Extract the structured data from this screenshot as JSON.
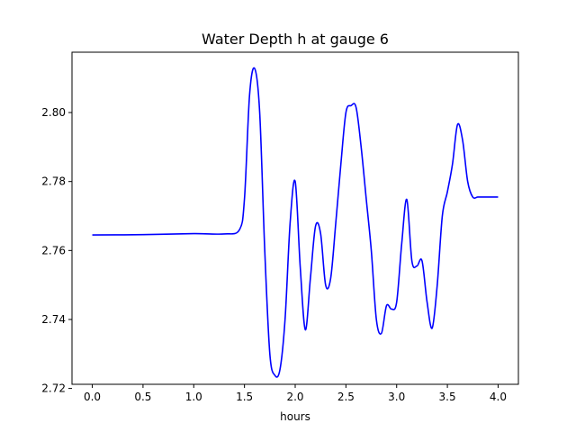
{
  "chart_data": {
    "type": "line",
    "title": "Water Depth h at gauge 6",
    "xlabel": "hours",
    "ylabel": "",
    "xlim": [
      -0.2,
      4.2
    ],
    "ylim": [
      2.7212,
      2.8175
    ],
    "xticks": [
      0.0,
      0.5,
      1.0,
      1.5,
      2.0,
      2.5,
      3.0,
      3.5,
      4.0
    ],
    "xtick_labels": [
      "0.0",
      "0.5",
      "1.0",
      "1.5",
      "2.0",
      "2.5",
      "3.0",
      "3.5",
      "4.0"
    ],
    "yticks": [
      2.72,
      2.74,
      2.76,
      2.78,
      2.8
    ],
    "ytick_labels": [
      "2.72",
      "2.74",
      "2.76",
      "2.78",
      "2.80"
    ],
    "grid": false,
    "series": [
      {
        "color": "#0000ff",
        "x": [
          0.0,
          0.5,
          1.0,
          1.3,
          1.45,
          1.5,
          1.55,
          1.6,
          1.65,
          1.7,
          1.75,
          1.8,
          1.85,
          1.9,
          1.95,
          2.0,
          2.05,
          2.1,
          2.15,
          2.2,
          2.25,
          2.3,
          2.35,
          2.4,
          2.45,
          2.5,
          2.55,
          2.6,
          2.65,
          2.7,
          2.75,
          2.8,
          2.85,
          2.9,
          2.95,
          3.0,
          3.05,
          3.1,
          3.15,
          3.2,
          3.25,
          3.3,
          3.35,
          3.4,
          3.45,
          3.5,
          3.55,
          3.6,
          3.65,
          3.7,
          3.75,
          3.8,
          3.85,
          3.9,
          3.95,
          4.0
        ],
        "y": [
          2.7645,
          2.7646,
          2.7649,
          2.7648,
          2.766,
          2.775,
          2.805,
          2.8128,
          2.8,
          2.76,
          2.73,
          2.7238,
          2.7255,
          2.74,
          2.768,
          2.78,
          2.755,
          2.737,
          2.752,
          2.767,
          2.765,
          2.75,
          2.752,
          2.768,
          2.785,
          2.8,
          2.802,
          2.8015,
          2.79,
          2.775,
          2.76,
          2.74,
          2.736,
          2.744,
          2.743,
          2.745,
          2.762,
          2.7748,
          2.757,
          2.7555,
          2.757,
          2.745,
          2.7375,
          2.75,
          2.77,
          2.777,
          2.785,
          2.7965,
          2.792,
          2.78,
          2.7755,
          2.7755,
          2.7755,
          2.7755,
          2.7755,
          2.7755
        ]
      }
    ]
  }
}
